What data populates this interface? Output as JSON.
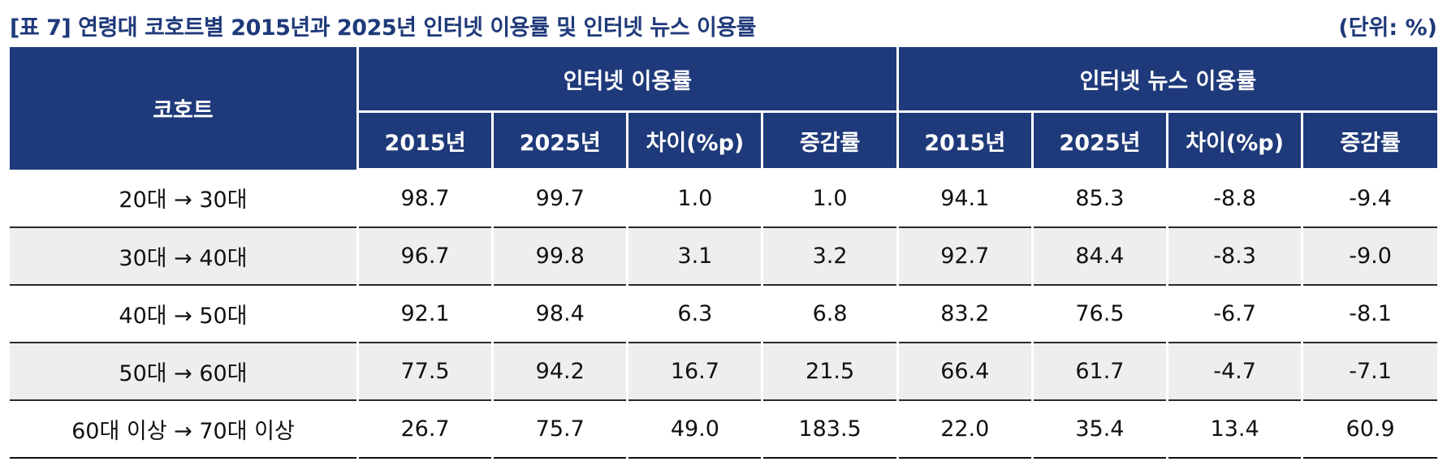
{
  "title": "[표 7] 연령대 코호트별 2015년과 2025년 인터넷 이용률 및 인터넷 뉴스 이용률",
  "unit": "(단위: %)",
  "headers": {
    "cohort": "코호트",
    "group_internet": "인터넷 이용률",
    "group_news": "인터넷 뉴스 이용률",
    "year_2015": "2015년",
    "year_2025": "2025년",
    "diff": "차이(%p)",
    "growth": "증감률"
  },
  "rows": [
    {
      "cohort": "20대 → 30대",
      "values": [
        "98.7",
        "99.7",
        "1.0",
        "1.0",
        "94.1",
        "85.3",
        "-8.8",
        "-9.4"
      ]
    },
    {
      "cohort": "30대 → 40대",
      "values": [
        "96.7",
        "99.8",
        "3.1",
        "3.2",
        "92.7",
        "84.4",
        "-8.3",
        "-9.0"
      ]
    },
    {
      "cohort": "40대 → 50대",
      "values": [
        "92.1",
        "98.4",
        "6.3",
        "6.8",
        "83.2",
        "76.5",
        "-6.7",
        "-8.1"
      ]
    },
    {
      "cohort": "50대 → 60대",
      "values": [
        "77.5",
        "94.2",
        "16.7",
        "21.5",
        "66.4",
        "61.7",
        "-4.7",
        "-7.1"
      ]
    },
    {
      "cohort": "60대 이상 → 70대 이상",
      "values": [
        "26.7",
        "75.7",
        "49.0",
        "183.5",
        "22.0",
        "35.4",
        "13.4",
        "60.9"
      ]
    }
  ],
  "colors": {
    "header_bg": "#1f3a7a",
    "title_text": "#1f3a7a",
    "shade_row": "#eeeeee"
  }
}
